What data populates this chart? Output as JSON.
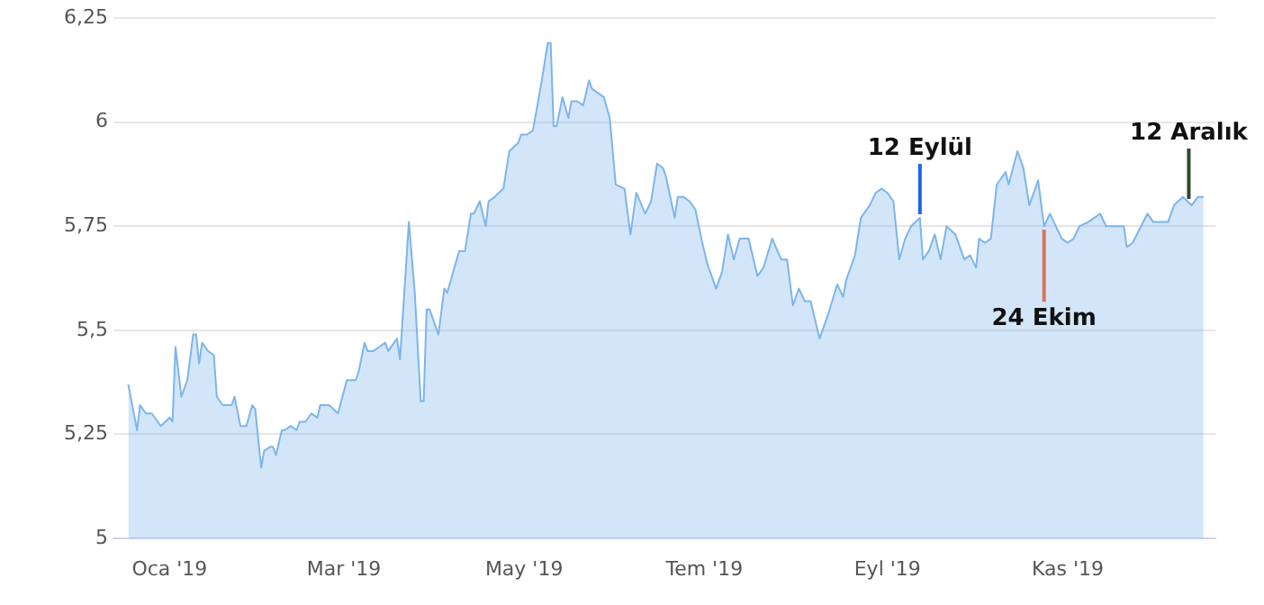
{
  "chart_data": {
    "type": "area",
    "x": [
      "2018-12-18",
      "2018-12-21",
      "2018-12-22",
      "2018-12-24",
      "2018-12-26",
      "2018-12-28",
      "2018-12-29",
      "2019-01-01",
      "2019-01-02",
      "2019-01-03",
      "2019-01-05",
      "2019-01-07",
      "2019-01-09",
      "2019-01-10",
      "2019-01-11",
      "2019-01-12",
      "2019-01-14",
      "2019-01-16",
      "2019-01-17",
      "2019-01-19",
      "2019-01-22",
      "2019-01-23",
      "2019-01-25",
      "2019-01-27",
      "2019-01-29",
      "2019-01-30",
      "2019-02-01",
      "2019-02-02",
      "2019-02-04",
      "2019-02-05",
      "2019-02-06",
      "2019-02-08",
      "2019-02-09",
      "2019-02-11",
      "2019-02-13",
      "2019-02-14",
      "2019-02-16",
      "2019-02-18",
      "2019-02-20",
      "2019-02-21",
      "2019-02-23",
      "2019-02-24",
      "2019-02-27",
      "2019-03-02",
      "2019-03-05",
      "2019-03-06",
      "2019-03-08",
      "2019-03-09",
      "2019-03-11",
      "2019-03-13",
      "2019-03-15",
      "2019-03-16",
      "2019-03-19",
      "2019-03-20",
      "2019-03-23",
      "2019-03-25",
      "2019-03-27",
      "2019-03-28",
      "2019-03-29",
      "2019-03-30",
      "2019-04-02",
      "2019-04-04",
      "2019-04-05",
      "2019-04-07",
      "2019-04-09",
      "2019-04-11",
      "2019-04-13",
      "2019-04-14",
      "2019-04-16",
      "2019-04-18",
      "2019-04-19",
      "2019-04-21",
      "2019-04-24",
      "2019-04-26",
      "2019-04-29",
      "2019-04-30",
      "2019-05-02",
      "2019-05-04",
      "2019-05-07",
      "2019-05-09",
      "2019-05-10",
      "2019-05-11",
      "2019-05-12",
      "2019-05-14",
      "2019-05-16",
      "2019-05-17",
      "2019-05-19",
      "2019-05-21",
      "2019-05-23",
      "2019-05-24",
      "2019-05-28",
      "2019-05-30",
      "2019-06-01",
      "2019-06-04",
      "2019-06-06",
      "2019-06-08",
      "2019-06-11",
      "2019-06-13",
      "2019-06-15",
      "2019-06-17",
      "2019-06-18",
      "2019-06-21",
      "2019-06-22",
      "2019-06-24",
      "2019-06-26",
      "2019-06-28",
      "2019-06-30",
      "2019-07-02",
      "2019-07-05",
      "2019-07-07",
      "2019-07-09",
      "2019-07-11",
      "2019-07-13",
      "2019-07-16",
      "2019-07-19",
      "2019-07-21",
      "2019-07-24",
      "2019-07-27",
      "2019-07-29",
      "2019-07-31",
      "2019-08-02",
      "2019-08-04",
      "2019-08-06",
      "2019-08-09",
      "2019-08-12",
      "2019-08-15",
      "2019-08-17",
      "2019-08-18",
      "2019-08-21",
      "2019-08-23",
      "2019-08-26",
      "2019-08-28",
      "2019-08-30",
      "2019-09-01",
      "2019-09-03",
      "2019-09-05",
      "2019-09-07",
      "2019-09-09",
      "2019-09-12",
      "2019-09-13",
      "2019-09-15",
      "2019-09-17",
      "2019-09-19",
      "2019-09-21",
      "2019-09-24",
      "2019-09-27",
      "2019-09-29",
      "2019-10-01",
      "2019-10-02",
      "2019-10-04",
      "2019-10-06",
      "2019-10-08",
      "2019-10-11",
      "2019-10-12",
      "2019-10-15",
      "2019-10-17",
      "2019-10-19",
      "2019-10-22",
      "2019-10-24",
      "2019-10-26",
      "2019-10-30",
      "2019-11-01",
      "2019-11-03",
      "2019-11-05",
      "2019-11-08",
      "2019-11-12",
      "2019-11-14",
      "2019-11-20",
      "2019-11-21",
      "2019-11-23",
      "2019-11-28",
      "2019-11-30",
      "2019-12-05",
      "2019-12-07",
      "2019-12-10",
      "2019-12-13",
      "2019-12-15",
      "2019-12-17"
    ],
    "series": [
      {
        "color": "#7cb5ec",
        "values": [
          5.37,
          5.26,
          5.32,
          5.3,
          5.3,
          5.28,
          5.27,
          5.29,
          5.28,
          5.46,
          5.34,
          5.38,
          5.49,
          5.49,
          5.42,
          5.47,
          5.45,
          5.44,
          5.34,
          5.32,
          5.32,
          5.34,
          5.27,
          5.27,
          5.32,
          5.31,
          5.17,
          5.21,
          5.22,
          5.22,
          5.2,
          5.26,
          5.26,
          5.27,
          5.26,
          5.28,
          5.28,
          5.3,
          5.29,
          5.32,
          5.32,
          5.32,
          5.3,
          5.38,
          5.38,
          5.4,
          5.47,
          5.45,
          5.45,
          5.46,
          5.47,
          5.45,
          5.48,
          5.43,
          5.76,
          5.59,
          5.33,
          5.33,
          5.55,
          5.55,
          5.49,
          5.6,
          5.59,
          5.64,
          5.69,
          5.69,
          5.78,
          5.78,
          5.81,
          5.75,
          5.81,
          5.82,
          5.84,
          5.93,
          5.95,
          5.97,
          5.97,
          5.98,
          6.1,
          6.19,
          6.19,
          5.99,
          5.99,
          6.06,
          6.01,
          6.05,
          6.05,
          6.04,
          6.1,
          6.08,
          6.06,
          6.01,
          5.85,
          5.84,
          5.73,
          5.83,
          5.78,
          5.81,
          5.9,
          5.89,
          5.87,
          5.77,
          5.82,
          5.82,
          5.81,
          5.79,
          5.72,
          5.66,
          5.6,
          5.64,
          5.73,
          5.67,
          5.72,
          5.72,
          5.63,
          5.65,
          5.72,
          5.67,
          5.67,
          5.56,
          5.6,
          5.57,
          5.57,
          5.48,
          5.54,
          5.61,
          5.58,
          5.62,
          5.68,
          5.77,
          5.8,
          5.83,
          5.84,
          5.83,
          5.81,
          5.67,
          5.72,
          5.75,
          5.77,
          5.67,
          5.69,
          5.73,
          5.67,
          5.75,
          5.73,
          5.67,
          5.68,
          5.65,
          5.72,
          5.71,
          5.72,
          5.85,
          5.88,
          5.85,
          5.93,
          5.89,
          5.8,
          5.86,
          5.75,
          5.78,
          5.72,
          5.71,
          5.72,
          5.75,
          5.76,
          5.78,
          5.75,
          5.75,
          5.7,
          5.71,
          5.78,
          5.76,
          5.76,
          5.8,
          5.82,
          5.8,
          5.82,
          5.82
        ]
      }
    ],
    "xlim": [
      "2018-12-13",
      "2019-12-21"
    ],
    "xticks": [
      {
        "value": "2019-01-01",
        "label": "Oca '19"
      },
      {
        "value": "2019-03-01",
        "label": "Mar '19"
      },
      {
        "value": "2019-05-01",
        "label": "May '19"
      },
      {
        "value": "2019-07-01",
        "label": "Tem '19"
      },
      {
        "value": "2019-09-01",
        "label": "Eyl '19"
      },
      {
        "value": "2019-11-01",
        "label": "Kas '19"
      }
    ],
    "ylim": [
      5,
      6.25
    ],
    "yticks": [
      {
        "value": 5,
        "label": "5"
      },
      {
        "value": 5.25,
        "label": "5,25"
      },
      {
        "value": 5.5,
        "label": "5,5"
      },
      {
        "value": 5.75,
        "label": "5,75"
      },
      {
        "value": 6,
        "label": "6"
      },
      {
        "value": 6.25,
        "label": "6,25"
      }
    ],
    "grid": "y",
    "legend": false,
    "marker": "none",
    "ref_lines": [
      {
        "axis": "x",
        "value": "2019-09-12",
        "label": "12 Eylül",
        "color": "#1f66e5"
      },
      {
        "axis": "x",
        "value": "2019-10-24",
        "label": "24 Ekim",
        "color": "#d9735a"
      },
      {
        "axis": "x",
        "value": "2019-12-12",
        "label": "12 Aralık",
        "color": "#2f4a2f"
      }
    ]
  }
}
